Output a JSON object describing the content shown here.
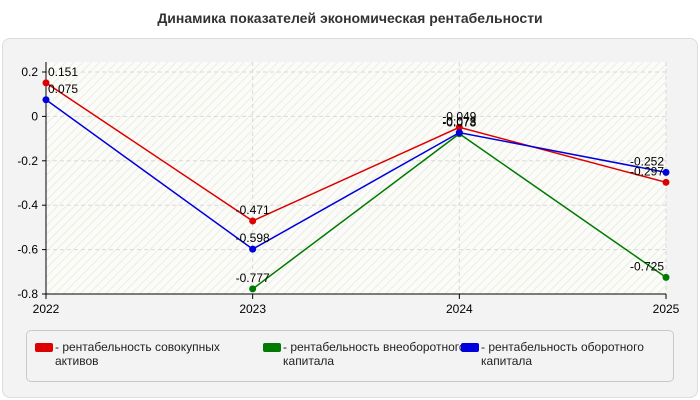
{
  "title": "Динамика показателей экономическая рентабельности",
  "colors": {
    "panel_bg": "#f3f3f3",
    "plot_bg": "#fbfbf8",
    "grid": "#d9d9d9",
    "hatch": "#ecece6",
    "axis": "#000000"
  },
  "chart_data": {
    "type": "line",
    "title": "Динамика показателей экономическая рентабельности",
    "categories": [
      "2022",
      "2023",
      "2024",
      "2025"
    ],
    "ylim": [
      -0.8,
      0.2
    ],
    "yticks": [
      0.2,
      0,
      -0.2,
      -0.4,
      -0.6,
      -0.8
    ],
    "ytick_labels": [
      "0.2",
      "0",
      "-0.2",
      "-0.4",
      "-0.6",
      "-0.8"
    ],
    "grid": true,
    "legend_position": "bottom",
    "series": [
      {
        "name": "- рентабельность совокупных активов",
        "color": "#dd0000",
        "values": [
          0.151,
          -0.471,
          -0.049,
          -0.297
        ],
        "labels": [
          "0.151",
          "-0.471",
          "-0.049",
          "-0.297"
        ]
      },
      {
        "name": "- рентабельность внеоборотного капитала",
        "color": "#007a00",
        "values": [
          null,
          -0.777,
          -0.078,
          -0.725
        ],
        "labels": [
          null,
          "-0.777",
          "-0.078",
          "-0.725"
        ]
      },
      {
        "name": "- рентабельность оборотного капитала",
        "color": "#0000dd",
        "values": [
          0.075,
          -0.598,
          -0.073,
          -0.252
        ],
        "labels": [
          "0.075",
          "-0.598",
          "-0.073",
          "-0.252"
        ]
      }
    ]
  }
}
